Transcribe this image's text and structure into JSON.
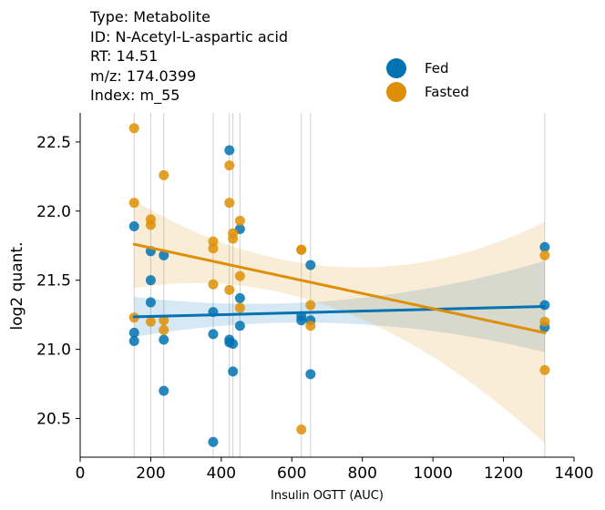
{
  "metadata_lines": [
    "Type: Metabolite",
    "ID: N-Acetyl-L-aspartic acid",
    "RT: 14.51",
    "m/z: 174.0399",
    "Index: m_55"
  ],
  "colors": {
    "fed": "#0173b2",
    "fasted": "#de8f05"
  },
  "chart_data": {
    "type": "scatter",
    "xlabel": "Insulin OGTT (AUC)",
    "ylabel": "log2 quant.",
    "xlim": [
      0,
      1400
    ],
    "ylim": [
      20.22,
      22.71
    ],
    "xticks": [
      0,
      200,
      400,
      600,
      800,
      1000,
      1200,
      1400
    ],
    "yticks": [
      20.5,
      21.0,
      21.5,
      22.0,
      22.5
    ],
    "vlines": [
      153,
      200,
      237,
      377,
      423,
      433,
      453,
      627,
      653,
      1317
    ],
    "legend_position": "top-right",
    "series": [
      {
        "name": "Fed",
        "color": "#0173b2",
        "x": [
          423,
          153,
          200,
          237,
          453,
          1317,
          653,
          200,
          377,
          453,
          1317,
          200,
          627,
          627,
          653,
          153,
          153,
          453,
          423,
          377,
          433,
          423,
          237,
          1317,
          433,
          653,
          237,
          377
        ],
        "y": [
          22.44,
          21.89,
          21.71,
          21.68,
          21.87,
          21.74,
          21.61,
          21.5,
          21.27,
          21.37,
          21.32,
          21.34,
          21.24,
          21.21,
          21.21,
          21.12,
          21.06,
          21.17,
          21.07,
          21.11,
          21.04,
          21.05,
          21.07,
          21.16,
          20.84,
          20.82,
          20.7,
          20.33
        ],
        "regression": {
          "x": [
            153,
            1317
          ],
          "y": [
            21.235,
            21.31
          ]
        }
      },
      {
        "name": "Fasted",
        "color": "#de8f05",
        "x": [
          153,
          237,
          423,
          153,
          423,
          200,
          200,
          453,
          433,
          433,
          377,
          627,
          627,
          377,
          1317,
          453,
          377,
          423,
          653,
          453,
          153,
          200,
          237,
          237,
          1317,
          653,
          1317,
          627
        ],
        "y": [
          22.6,
          22.26,
          22.33,
          22.06,
          22.06,
          21.94,
          21.9,
          21.93,
          21.84,
          21.8,
          21.78,
          21.72,
          21.72,
          21.73,
          21.68,
          21.53,
          21.47,
          21.43,
          21.32,
          21.3,
          21.23,
          21.2,
          21.21,
          21.14,
          21.2,
          21.17,
          20.85,
          20.42
        ],
        "regression": {
          "x": [
            153,
            1317
          ],
          "y": [
            21.76,
            21.12
          ]
        }
      }
    ]
  }
}
